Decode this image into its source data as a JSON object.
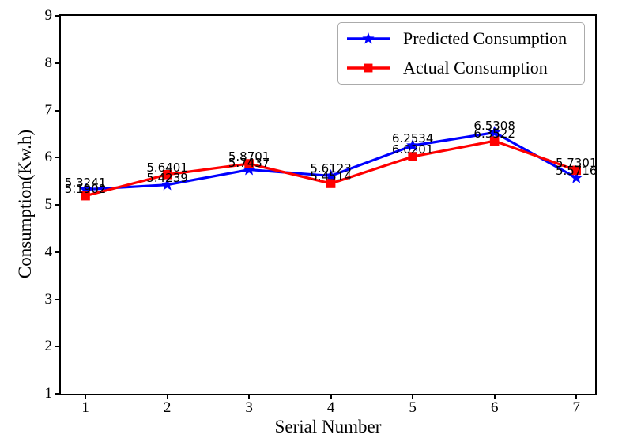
{
  "figure": {
    "background": "#ffffff"
  },
  "chart_data": {
    "type": "line",
    "title": "",
    "xlabel": "Serial Number",
    "ylabel": "Consumption(Kw.h)",
    "x": [
      1,
      2,
      3,
      4,
      5,
      6,
      7
    ],
    "xticks": [
      1,
      2,
      3,
      4,
      5,
      6,
      7
    ],
    "yticks": [
      1,
      2,
      3,
      4,
      5,
      6,
      7,
      8,
      9
    ],
    "xlim": [
      0.7,
      7.23
    ],
    "ylim": [
      1,
      9
    ],
    "grid": false,
    "legend_position": "upper right",
    "series": [
      {
        "name": "Predicted Consumption",
        "color": "#0000ff",
        "marker": "star",
        "values": [
          5.3241,
          5.4239,
          5.7437,
          5.6123,
          6.2534,
          6.5308,
          5.5716
        ],
        "labels": [
          "5.3241",
          "5.4239",
          "5.7437",
          "5.6123",
          "6.2534",
          "6.5308",
          "5.5716"
        ]
      },
      {
        "name": "Actual Consumption",
        "color": "#ff0000",
        "marker": "square",
        "values": [
          5.1902,
          5.6401,
          5.8701,
          5.4514,
          6.0201,
          6.3522,
          5.7301
        ],
        "labels": [
          "5.1902",
          "5.6401",
          "5.8701",
          "5.4514",
          "6.0201",
          "6.3522",
          "5.7301"
        ]
      }
    ]
  }
}
